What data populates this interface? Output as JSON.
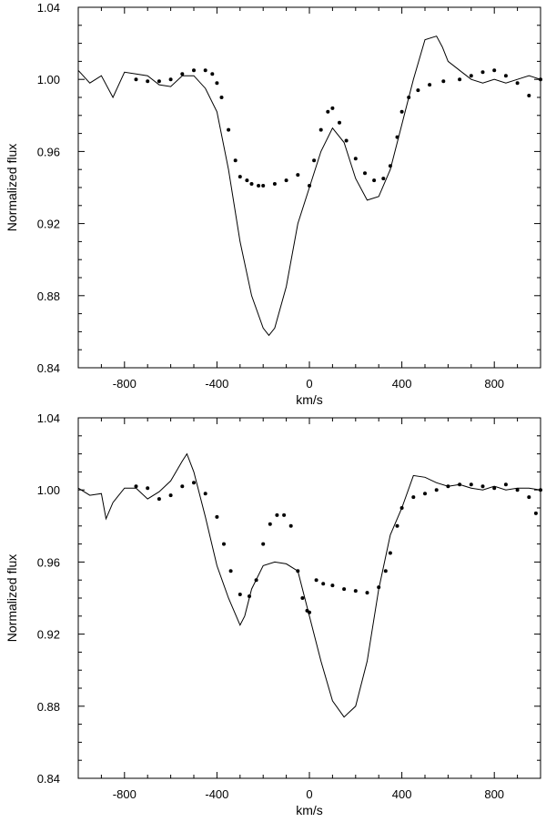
{
  "chart_data": [
    {
      "type": "line",
      "title": "",
      "xlabel": "km/s",
      "ylabel": "Normalized flux",
      "xlim": [
        -1000,
        1000
      ],
      "ylim": [
        0.84,
        1.04
      ],
      "xticks": [
        -800,
        -400,
        0,
        400,
        800
      ],
      "yticks": [
        0.84,
        0.88,
        0.92,
        0.96,
        1.0,
        1.04
      ],
      "ytick_labels": [
        "0.84",
        "0.88",
        "0.92",
        "0.96",
        "1.00",
        "1.04"
      ],
      "grid": false,
      "series": [
        {
          "style": "line",
          "x": [
            -1000,
            -950,
            -900,
            -850,
            -800,
            -750,
            -700,
            -650,
            -600,
            -550,
            -500,
            -450,
            -400,
            -350,
            -300,
            -250,
            -200,
            -175,
            -150,
            -100,
            -50,
            0,
            50,
            100,
            150,
            200,
            250,
            300,
            350,
            400,
            450,
            500,
            550,
            575,
            600,
            650,
            700,
            750,
            800,
            850,
            900,
            950,
            1000
          ],
          "y": [
            1.005,
            0.998,
            1.002,
            0.99,
            1.004,
            1.003,
            1.002,
            0.997,
            0.996,
            1.002,
            1.002,
            0.995,
            0.982,
            0.95,
            0.91,
            0.88,
            0.862,
            0.858,
            0.862,
            0.885,
            0.92,
            0.94,
            0.96,
            0.973,
            0.965,
            0.945,
            0.933,
            0.935,
            0.95,
            0.975,
            1.0,
            1.022,
            1.024,
            1.018,
            1.01,
            1.005,
            1.0,
            0.998,
            1.0,
            0.998,
            1.0,
            1.002,
            1.0
          ]
        },
        {
          "style": "dots",
          "x": [
            -750,
            -700,
            -650,
            -600,
            -550,
            -500,
            -450,
            -420,
            -400,
            -380,
            -350,
            -320,
            -300,
            -270,
            -250,
            -220,
            -200,
            -150,
            -100,
            -50,
            0,
            20,
            50,
            80,
            100,
            130,
            160,
            200,
            240,
            280,
            320,
            350,
            380,
            400,
            430,
            470,
            520,
            580,
            650,
            700,
            750,
            800,
            850,
            900,
            950,
            1000
          ],
          "y": [
            1.0,
            0.999,
            0.999,
            1.0,
            1.003,
            1.005,
            1.005,
            1.003,
            0.998,
            0.99,
            0.972,
            0.955,
            0.946,
            0.944,
            0.942,
            0.941,
            0.941,
            0.942,
            0.944,
            0.947,
            0.941,
            0.955,
            0.972,
            0.982,
            0.984,
            0.976,
            0.966,
            0.956,
            0.948,
            0.944,
            0.945,
            0.952,
            0.968,
            0.982,
            0.99,
            0.994,
            0.997,
            0.999,
            1.0,
            1.002,
            1.004,
            1.005,
            1.002,
            0.998,
            0.991,
            1.0
          ]
        }
      ]
    },
    {
      "type": "line",
      "title": "",
      "xlabel": "km/s",
      "ylabel": "Normalized flux",
      "xlim": [
        -1000,
        1000
      ],
      "ylim": [
        0.84,
        1.04
      ],
      "xticks": [
        -800,
        -400,
        0,
        400,
        800
      ],
      "yticks": [
        0.84,
        0.88,
        0.92,
        0.96,
        1.0,
        1.04
      ],
      "ytick_labels": [
        "0.84",
        "0.88",
        "0.92",
        "0.96",
        "1.00",
        "1.04"
      ],
      "grid": false,
      "series": [
        {
          "style": "line",
          "x": [
            -1000,
            -950,
            -900,
            -880,
            -850,
            -800,
            -750,
            -700,
            -650,
            -600,
            -550,
            -530,
            -500,
            -450,
            -400,
            -350,
            -300,
            -280,
            -250,
            -200,
            -150,
            -100,
            -50,
            0,
            50,
            100,
            150,
            200,
            250,
            300,
            350,
            400,
            450,
            500,
            550,
            600,
            650,
            700,
            750,
            800,
            850,
            900,
            950,
            1000
          ],
          "y": [
            1.001,
            0.997,
            0.998,
            0.984,
            0.993,
            1.001,
            1.001,
            0.995,
            0.999,
            1.005,
            1.016,
            1.02,
            1.01,
            0.985,
            0.958,
            0.94,
            0.925,
            0.93,
            0.945,
            0.958,
            0.96,
            0.959,
            0.955,
            0.93,
            0.905,
            0.883,
            0.874,
            0.88,
            0.905,
            0.945,
            0.975,
            0.99,
            1.008,
            1.007,
            1.004,
            1.002,
            1.003,
            1.001,
            1.0,
            1.002,
            1.0,
            1.001,
            1.001,
            1.0
          ]
        },
        {
          "style": "dots",
          "x": [
            -750,
            -700,
            -650,
            -600,
            -550,
            -500,
            -450,
            -400,
            -370,
            -340,
            -300,
            -260,
            -230,
            -200,
            -170,
            -140,
            -110,
            -80,
            -50,
            -30,
            -10,
            0,
            30,
            60,
            100,
            150,
            200,
            250,
            300,
            330,
            350,
            380,
            400,
            450,
            500,
            550,
            600,
            650,
            700,
            750,
            800,
            850,
            900,
            950,
            980,
            1000
          ],
          "y": [
            1.002,
            1.001,
            0.995,
            0.997,
            1.002,
            1.004,
            0.998,
            0.985,
            0.97,
            0.955,
            0.942,
            0.941,
            0.95,
            0.97,
            0.981,
            0.986,
            0.986,
            0.98,
            0.955,
            0.94,
            0.933,
            0.932,
            0.95,
            0.948,
            0.947,
            0.945,
            0.944,
            0.943,
            0.946,
            0.955,
            0.965,
            0.98,
            0.99,
            0.996,
            0.998,
            1.0,
            1.002,
            1.003,
            1.003,
            1.002,
            1.001,
            1.003,
            1.0,
            0.996,
            0.987,
            1.0
          ]
        }
      ]
    }
  ]
}
